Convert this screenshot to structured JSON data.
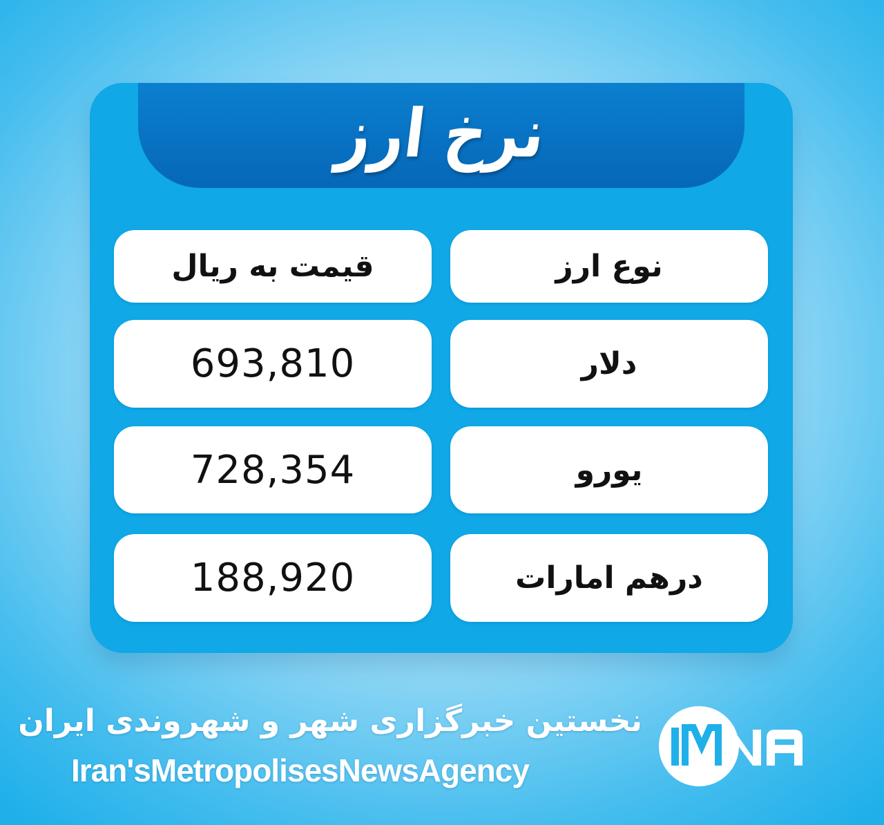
{
  "title": "نرخ ارز",
  "table": {
    "headers": [
      "نوع ارز",
      "قیمت به ریال"
    ],
    "rows": [
      {
        "currency": "دلار",
        "price": "693,810"
      },
      {
        "currency": "یورو",
        "price": "728,354"
      },
      {
        "currency": "درهم امارات",
        "price": "188,920"
      }
    ]
  },
  "footer": {
    "tagline_fa": "نخستین خبرگزاری شهر و شهروندی ایران",
    "name_en": "Iran'sMetropolisesNewsAgency",
    "logo_text": "IMNA"
  },
  "colors": {
    "card": "#10a8e6",
    "banner": "#0667b8",
    "cell": "#ffffff"
  }
}
